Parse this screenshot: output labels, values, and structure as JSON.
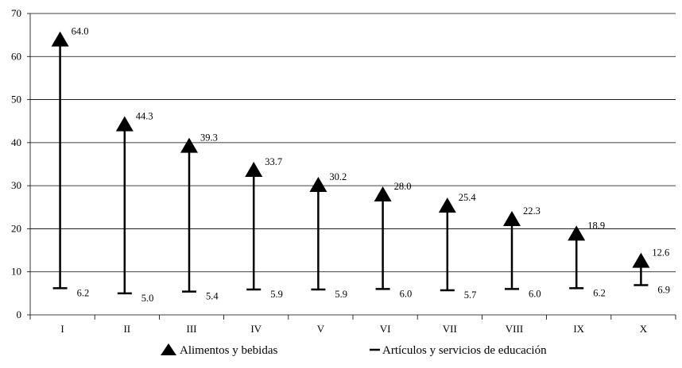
{
  "chart_data": {
    "type": "dropline",
    "categories": [
      "I",
      "II",
      "III",
      "IV",
      "V",
      "VI",
      "VII",
      "VIII",
      "IX",
      "X"
    ],
    "series": [
      {
        "name": "Alimentos y bebidas",
        "marker": "triangle",
        "values": [
          64.0,
          44.3,
          39.3,
          33.7,
          30.2,
          28.0,
          25.4,
          22.3,
          18.9,
          12.6
        ]
      },
      {
        "name": "Artículos y servicios de educación",
        "marker": "dash",
        "values": [
          6.2,
          5.0,
          5.4,
          5.9,
          5.9,
          6.0,
          5.7,
          6.0,
          6.2,
          6.9
        ]
      }
    ],
    "value_labels_top": [
      "64.0",
      "44.3",
      "39.3",
      "33.7",
      "30.2",
      "28.0",
      "25.4",
      "22.3",
      "18.9",
      "12.6"
    ],
    "value_labels_bottom": [
      "6.2",
      "5.0",
      "5.4",
      "5.9",
      "5.9",
      "6.0",
      "5.7",
      "6.0",
      "6.2",
      "6.9"
    ],
    "y_ticks": [
      "0",
      "10",
      "20",
      "30",
      "40",
      "50",
      "60",
      "70"
    ],
    "ylim": [
      0,
      70
    ],
    "grid": true,
    "legend_position": "bottom",
    "title": "",
    "xlabel": "",
    "ylabel": "",
    "colors": {
      "marker": "#000000",
      "grid": "#000000"
    }
  }
}
